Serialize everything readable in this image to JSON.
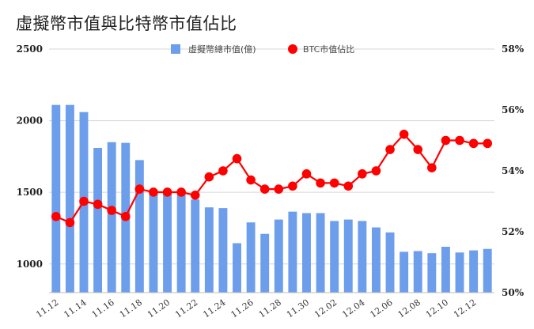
{
  "chart_data": {
    "type": "bar",
    "title": "虛擬幣市值與比特幣市值佔比",
    "categories": [
      "11.12",
      "11.13",
      "11.14",
      "11.15",
      "11.16",
      "11.17",
      "11.18",
      "11.19",
      "11.20",
      "11.21",
      "11.22",
      "11.23",
      "11.24",
      "11.25",
      "11.26",
      "11.27",
      "11.28",
      "11.29",
      "11.30",
      "12.01",
      "12.02",
      "12.03",
      "12.04",
      "12.05",
      "12.06",
      "12.07",
      "12.08",
      "12.09",
      "12.10",
      "12.11",
      "12.12",
      "12.13"
    ],
    "x_tick_labels": [
      "11.12",
      "11.14",
      "11.16",
      "11.18",
      "11.20",
      "11.22",
      "11.24",
      "11.26",
      "11.28",
      "11.30",
      "12.02",
      "12.04",
      "12.06",
      "12.08",
      "12.10",
      "12.12"
    ],
    "series": [
      {
        "name": "虛擬幣總市值(億)",
        "type": "bar",
        "axis": "left",
        "color": "#6d9eeb",
        "values": [
          2110,
          2110,
          2060,
          1810,
          1850,
          1845,
          1725,
          1500,
          1490,
          1490,
          1450,
          1395,
          1390,
          1145,
          1290,
          1210,
          1310,
          1365,
          1355,
          1355,
          1300,
          1310,
          1300,
          1255,
          1220,
          1085,
          1090,
          1075,
          1120,
          1080,
          1095,
          1105
        ]
      },
      {
        "name": "BTC市值佔比",
        "type": "line",
        "axis": "right",
        "color": "#ff0000",
        "values": [
          52.5,
          52.3,
          53.0,
          52.9,
          52.7,
          52.5,
          53.4,
          53.3,
          53.3,
          53.3,
          53.2,
          53.8,
          54.0,
          54.4,
          53.7,
          53.4,
          53.4,
          53.5,
          53.9,
          53.6,
          53.6,
          53.5,
          53.9,
          54.0,
          54.7,
          55.2,
          54.7,
          54.1,
          55.0,
          55.0,
          54.9,
          54.9
        ]
      }
    ],
    "y_left": {
      "ticks": [
        "1000",
        "1500",
        "2000",
        "2500"
      ],
      "range": [
        800,
        2500
      ]
    },
    "y_right": {
      "ticks": [
        "50%",
        "52%",
        "54%",
        "56%",
        "58%"
      ],
      "range": [
        50,
        58
      ]
    },
    "legend_position": "top-center",
    "grid": "horizontal"
  }
}
